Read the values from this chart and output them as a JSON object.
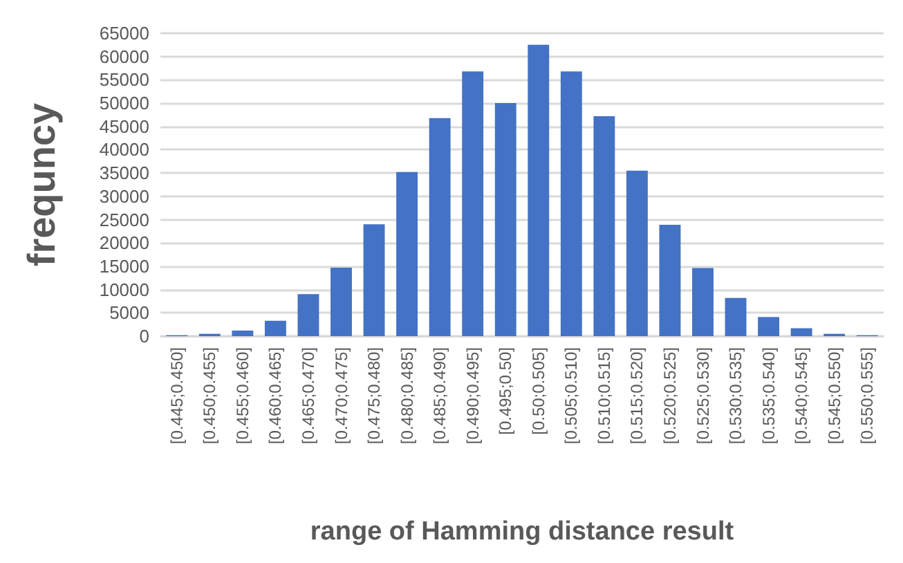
{
  "chart_data": {
    "type": "bar",
    "xlabel": "range of Hamming distance result",
    "ylabel": "frequncy",
    "categories": [
      "[0.445;0.450]",
      "[0.450;0.455]",
      "[0.455;0.460]",
      "[0.460;0.465]",
      "[0.465;0.470]",
      "[0.470;0.475]",
      "[0.475;0.480]",
      "[0.480;0.485]",
      "[0.485;0.490]",
      "[0.490;0.495]",
      "[0.495;0.50]",
      "[0.50;0.505]",
      "[0.505;0.510]",
      "[0.510;0.515]",
      "[0.515;0.520]",
      "[0.520;0.525]",
      "[0.525;0.530]",
      "[0.530;0.535]",
      "[0.535;0.540]",
      "[0.540;0.545]",
      "[0.545;0.550]",
      "[0.550;0.555]"
    ],
    "values": [
      200,
      500,
      1200,
      3300,
      9000,
      14700,
      24000,
      35200,
      46800,
      56800,
      50000,
      62500,
      56800,
      47200,
      35500,
      23900,
      14600,
      8200,
      4100,
      1700,
      500,
      200
    ],
    "color": "#4472c4",
    "ylim": [
      0,
      65000
    ],
    "yticks": [
      0,
      5000,
      10000,
      15000,
      20000,
      25000,
      30000,
      35000,
      40000,
      45000,
      50000,
      55000,
      60000,
      65000
    ],
    "grid": "y"
  }
}
